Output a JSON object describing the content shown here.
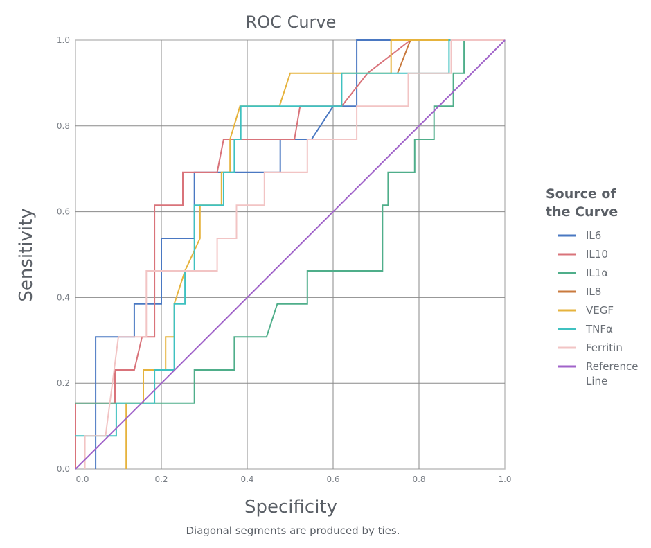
{
  "chart_data": {
    "type": "line",
    "title": "ROC Curve",
    "xlabel": "Specificity",
    "ylabel": "Sensitivity",
    "footnote": "Diagonal segments are produced by ties.",
    "xlim": [
      0,
      1
    ],
    "ylim": [
      0,
      1
    ],
    "grid": true,
    "x_ticks": [
      "0.0",
      "0.2",
      "0.4",
      "0.6",
      "0.8",
      "1.0"
    ],
    "y_ticks": [
      "0.0",
      "0.2",
      "0.4",
      "0.6",
      "0.8",
      "1.0"
    ],
    "legend": {
      "title": "Source of the Curve",
      "title_lines": [
        "Source of",
        "the Curve"
      ],
      "placement": "right"
    },
    "series": [
      {
        "name": "IL6",
        "color": "#4a78c2",
        "points": [
          [
            0.047,
            0
          ],
          [
            0.047,
            0.077
          ],
          [
            0.047,
            0.308
          ],
          [
            0.092,
            0.308
          ],
          [
            0.137,
            0.308
          ],
          [
            0.137,
            0.385
          ],
          [
            0.184,
            0.385
          ],
          [
            0.2,
            0.385
          ],
          [
            0.2,
            0.538
          ],
          [
            0.277,
            0.538
          ],
          [
            0.277,
            0.692
          ],
          [
            0.477,
            0.692
          ],
          [
            0.477,
            0.769
          ],
          [
            0.55,
            0.769
          ],
          [
            0.6,
            0.846
          ],
          [
            0.6,
            0.846
          ],
          [
            0.655,
            0.846
          ],
          [
            0.655,
            1.0
          ],
          [
            1.0,
            1.0
          ]
        ]
      },
      {
        "name": "IL10",
        "color": "#d9737a",
        "points": [
          [
            0,
            0
          ],
          [
            0,
            0.154
          ],
          [
            0.047,
            0.154
          ],
          [
            0.092,
            0.154
          ],
          [
            0.092,
            0.231
          ],
          [
            0.137,
            0.231
          ],
          [
            0.155,
            0.308
          ],
          [
            0.184,
            0.308
          ],
          [
            0.184,
            0.615
          ],
          [
            0.25,
            0.615
          ],
          [
            0.25,
            0.692
          ],
          [
            0.33,
            0.692
          ],
          [
            0.345,
            0.769
          ],
          [
            0.51,
            0.769
          ],
          [
            0.523,
            0.846
          ],
          [
            0.62,
            0.846
          ],
          [
            0.68,
            0.923
          ],
          [
            0.78,
            1.0
          ],
          [
            1.0,
            1.0
          ]
        ]
      },
      {
        "name": "IL1α",
        "color": "#4fae8a",
        "points": [
          [
            0,
            0.154
          ],
          [
            0.277,
            0.154
          ],
          [
            0.277,
            0.231
          ],
          [
            0.37,
            0.231
          ],
          [
            0.37,
            0.308
          ],
          [
            0.445,
            0.308
          ],
          [
            0.47,
            0.385
          ],
          [
            0.54,
            0.385
          ],
          [
            0.54,
            0.462
          ],
          [
            0.715,
            0.462
          ],
          [
            0.715,
            0.615
          ],
          [
            0.728,
            0.615
          ],
          [
            0.728,
            0.692
          ],
          [
            0.79,
            0.692
          ],
          [
            0.79,
            0.769
          ],
          [
            0.835,
            0.769
          ],
          [
            0.835,
            0.846
          ],
          [
            0.88,
            0.846
          ],
          [
            0.88,
            0.923
          ],
          [
            0.905,
            0.923
          ],
          [
            0.905,
            1.0
          ],
          [
            1.0,
            1.0
          ]
        ]
      },
      {
        "name": "IL8",
        "color": "#c97a3e",
        "points": [
          [
            0.75,
            0.923
          ],
          [
            0.78,
            1.0
          ]
        ]
      },
      {
        "name": "VEGF",
        "color": "#e6b33d",
        "points": [
          [
            0.118,
            0
          ],
          [
            0.118,
            0.154
          ],
          [
            0.158,
            0.154
          ],
          [
            0.158,
            0.231
          ],
          [
            0.21,
            0.231
          ],
          [
            0.21,
            0.308
          ],
          [
            0.23,
            0.308
          ],
          [
            0.23,
            0.385
          ],
          [
            0.255,
            0.462
          ],
          [
            0.29,
            0.538
          ],
          [
            0.29,
            0.615
          ],
          [
            0.34,
            0.615
          ],
          [
            0.34,
            0.692
          ],
          [
            0.36,
            0.692
          ],
          [
            0.36,
            0.769
          ],
          [
            0.383,
            0.846
          ],
          [
            0.405,
            0.846
          ],
          [
            0.475,
            0.846
          ],
          [
            0.5,
            0.923
          ],
          [
            0.62,
            0.923
          ],
          [
            0.645,
            0.923
          ],
          [
            0.735,
            0.923
          ],
          [
            0.735,
            1.0
          ],
          [
            1.0,
            1.0
          ]
        ]
      },
      {
        "name": "TNFα",
        "color": "#3fc1c0",
        "points": [
          [
            0,
            0.077
          ],
          [
            0.095,
            0.077
          ],
          [
            0.095,
            0.154
          ],
          [
            0.184,
            0.154
          ],
          [
            0.184,
            0.231
          ],
          [
            0.23,
            0.231
          ],
          [
            0.23,
            0.385
          ],
          [
            0.255,
            0.385
          ],
          [
            0.255,
            0.462
          ],
          [
            0.277,
            0.462
          ],
          [
            0.277,
            0.615
          ],
          [
            0.345,
            0.615
          ],
          [
            0.345,
            0.692
          ],
          [
            0.37,
            0.692
          ],
          [
            0.37,
            0.769
          ],
          [
            0.385,
            0.769
          ],
          [
            0.385,
            0.846
          ],
          [
            0.62,
            0.846
          ],
          [
            0.62,
            0.923
          ],
          [
            0.87,
            0.923
          ],
          [
            0.87,
            1.0
          ],
          [
            1.0,
            1.0
          ]
        ]
      },
      {
        "name": "Ferritin",
        "color": "#f2c4c4",
        "points": [
          [
            0.022,
            0
          ],
          [
            0.022,
            0.077
          ],
          [
            0.07,
            0.077
          ],
          [
            0.1,
            0.308
          ],
          [
            0.165,
            0.308
          ],
          [
            0.165,
            0.462
          ],
          [
            0.33,
            0.462
          ],
          [
            0.33,
            0.538
          ],
          [
            0.375,
            0.538
          ],
          [
            0.375,
            0.615
          ],
          [
            0.44,
            0.615
          ],
          [
            0.44,
            0.692
          ],
          [
            0.54,
            0.692
          ],
          [
            0.54,
            0.769
          ],
          [
            0.655,
            0.769
          ],
          [
            0.655,
            0.846
          ],
          [
            0.775,
            0.846
          ],
          [
            0.775,
            0.923
          ],
          [
            0.875,
            0.923
          ],
          [
            0.875,
            1.0
          ],
          [
            1.0,
            1.0
          ]
        ]
      },
      {
        "name": "Reference Line",
        "color": "#a063c9",
        "points": [
          [
            0,
            0
          ],
          [
            1,
            1
          ]
        ]
      }
    ]
  }
}
